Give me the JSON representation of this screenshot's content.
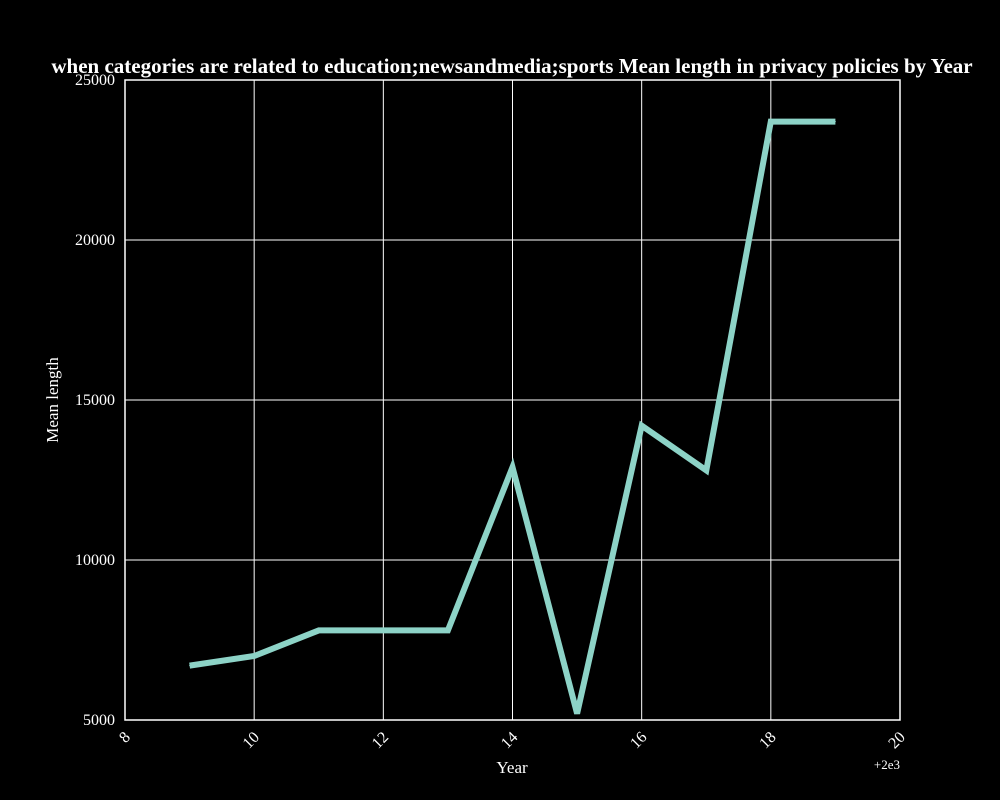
{
  "colors": {
    "background": "#000000",
    "foreground": "#ffffff",
    "grid": "#ffffff",
    "line": "#8dd3c7"
  },
  "chart_data": {
    "type": "line",
    "title": "when categories are related to education;newsandmedia;sports Mean length in privacy policies by Year",
    "xlabel": "Year",
    "ylabel": "Mean length",
    "x_offset_label": "+2e3",
    "xlim": [
      8,
      20
    ],
    "ylim": [
      5000,
      25000
    ],
    "grid": true,
    "x_ticks": [
      "8",
      "10",
      "12",
      "14",
      "16",
      "18",
      "20"
    ],
    "y_ticks": [
      "5000",
      "10000",
      "15000",
      "20000",
      "25000"
    ],
    "series": [
      {
        "x": [
          9,
          10,
          11,
          12,
          13,
          14,
          15,
          16,
          17,
          18,
          19
        ],
        "y": [
          6700,
          7000,
          7800,
          7800,
          7800,
          12900,
          5200,
          14200,
          12800,
          23700,
          23700
        ]
      }
    ]
  }
}
